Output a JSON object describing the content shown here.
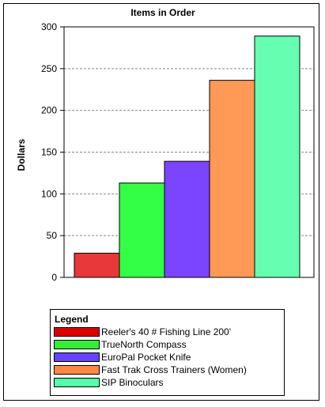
{
  "chart_data": {
    "type": "bar",
    "title": "Items in Order",
    "ylabel": "Dollars",
    "xlabel": "",
    "ylim": [
      0,
      300
    ],
    "yticks": [
      0,
      50,
      100,
      150,
      200,
      250,
      300
    ],
    "grid": "horizontal dashed",
    "legend_title": "Legend",
    "legend_position": "bottom",
    "series": [
      {
        "name": "Reeler's 40 # Fishing Line 200'",
        "value": 29,
        "color": "#e8383a"
      },
      {
        "name": "TrueNorth Compass",
        "value": 113,
        "color": "#33ff44"
      },
      {
        "name": "EuroPal Pocket Knife",
        "value": 139,
        "color": "#7b44ff"
      },
      {
        "name": "Fast Trak Cross Trainers (Women)",
        "value": 236,
        "color": "#ff9955"
      },
      {
        "name": "SIP Binoculars",
        "value": 289,
        "color": "#66ffb2"
      }
    ],
    "legend_colors": [
      "#dd0000",
      "#33ee33",
      "#6644ff",
      "#ff8844",
      "#55ffaa"
    ]
  }
}
